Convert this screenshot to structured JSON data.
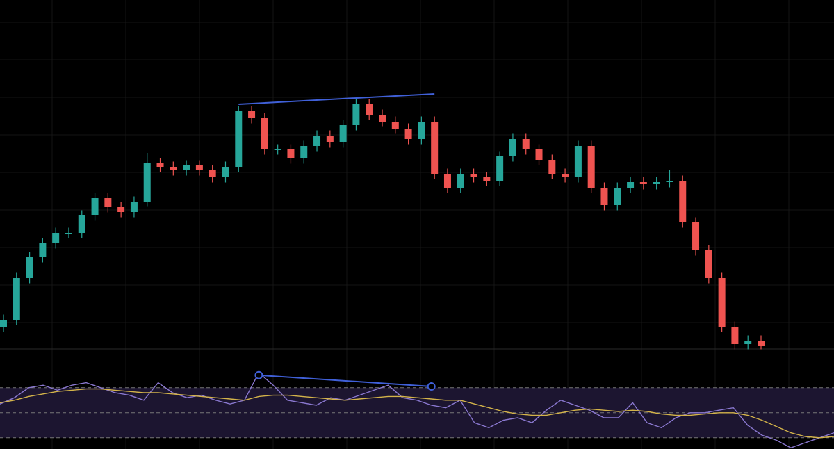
{
  "chart_data": [
    {
      "type": "candlestick",
      "up_color": "#26a69a",
      "down_color": "#ef5350",
      "ylim": [
        0,
        100
      ],
      "open": [
        8,
        10,
        22,
        28,
        32,
        35,
        35,
        40,
        45,
        42.4,
        41,
        44,
        55,
        54,
        53,
        54.4,
        53,
        51,
        54,
        70,
        68,
        59,
        59,
        56.4,
        60,
        63,
        61,
        66,
        72,
        69,
        67,
        65,
        62,
        67,
        52,
        48,
        52,
        51,
        50,
        57,
        62,
        59,
        56,
        52,
        51,
        60,
        48,
        43,
        48,
        49.6,
        49,
        49.6,
        50,
        38,
        30,
        22,
        8,
        3,
        4
      ],
      "high": [
        11.5,
        23.5,
        29.5,
        33.5,
        36.5,
        36.5,
        41.5,
        46.5,
        46.5,
        43.9,
        45.5,
        58,
        56.5,
        55.5,
        55.9,
        55.9,
        54.5,
        55.5,
        71.5,
        71.5,
        69.5,
        60.5,
        60.5,
        61.5,
        64.5,
        64.5,
        67.5,
        73.5,
        73.5,
        70.5,
        68.5,
        66.5,
        68.5,
        68.5,
        53.5,
        53.5,
        53.5,
        52.5,
        58.5,
        63.5,
        63.5,
        60.5,
        57.5,
        53.5,
        61.5,
        61.5,
        49.5,
        49.5,
        51.1,
        51.1,
        51.1,
        53,
        51.5,
        39.5,
        31.5,
        23.5,
        9.5,
        5.5,
        5.5
      ],
      "low": [
        6.5,
        8.5,
        20.5,
        26.5,
        30.5,
        33.5,
        33.5,
        38.5,
        40.9,
        39.5,
        39.5,
        42.5,
        52.5,
        51.5,
        51.5,
        51.5,
        49.5,
        49.5,
        52.5,
        66.5,
        57.5,
        57.5,
        54.9,
        54.9,
        58.5,
        59.5,
        59.5,
        64.5,
        67.5,
        65.5,
        63.5,
        60.5,
        60.5,
        50.5,
        46.5,
        46.5,
        49.5,
        48.5,
        48.5,
        55.5,
        57.5,
        54.5,
        50.5,
        49.5,
        49.5,
        46.5,
        41.5,
        41.5,
        46.5,
        47.5,
        47.5,
        48.1,
        36.5,
        28.5,
        20.5,
        6.5,
        1.5,
        1.5,
        1.5
      ],
      "close": [
        10,
        22,
        28,
        32,
        35,
        35,
        40,
        45,
        42.4,
        41,
        44,
        55,
        54,
        53,
        54.4,
        53,
        51,
        54,
        70,
        68,
        59,
        59,
        56.4,
        60,
        63,
        61,
        66,
        72,
        69,
        67,
        65,
        62,
        67,
        52,
        48,
        52,
        51,
        50,
        57,
        62,
        59,
        56,
        52,
        51,
        60,
        48,
        43,
        48,
        49.6,
        49,
        49.6,
        50,
        38,
        30,
        22,
        8,
        3,
        4,
        2.4
      ],
      "trendline": {
        "color": "#4060d8",
        "x": [
          18,
          33
        ],
        "y": [
          72,
          75
        ]
      }
    },
    {
      "type": "line",
      "ylim": [
        21,
        101
      ],
      "yticks": [
        30,
        50,
        70
      ],
      "band_color": "#1c1530",
      "series": [
        {
          "color": "#8a78d0",
          "values": [
            57,
            62,
            70,
            72,
            68,
            72,
            74,
            70,
            66,
            64,
            60,
            74,
            66,
            62,
            64,
            60,
            57,
            60,
            82,
            72,
            60,
            58,
            56,
            62,
            60,
            64,
            68,
            72,
            62,
            60,
            56,
            54,
            60,
            42,
            38,
            44,
            46,
            42,
            52,
            60,
            56,
            52,
            46,
            46,
            58,
            42,
            38,
            46,
            50,
            50,
            52,
            54,
            40,
            32,
            28,
            22,
            26,
            30,
            34
          ]
        },
        {
          "color": "#d4b44a",
          "values": [
            58,
            60,
            63,
            65,
            67,
            68,
            69,
            69,
            68,
            67,
            66,
            66,
            65,
            64,
            63,
            62,
            61,
            60,
            63,
            64,
            64,
            63,
            62,
            61,
            60,
            61,
            62,
            63,
            63,
            62,
            61,
            60,
            60,
            57,
            54,
            51,
            49,
            48,
            48,
            50,
            52,
            53,
            52,
            51,
            52,
            51,
            49,
            48,
            48,
            49,
            50,
            50,
            48,
            44,
            39,
            34,
            31,
            30,
            31
          ]
        }
      ],
      "trendline": {
        "color": "#4060d8",
        "x": [
          18,
          30
        ],
        "y": [
          80,
          71
        ]
      }
    }
  ]
}
